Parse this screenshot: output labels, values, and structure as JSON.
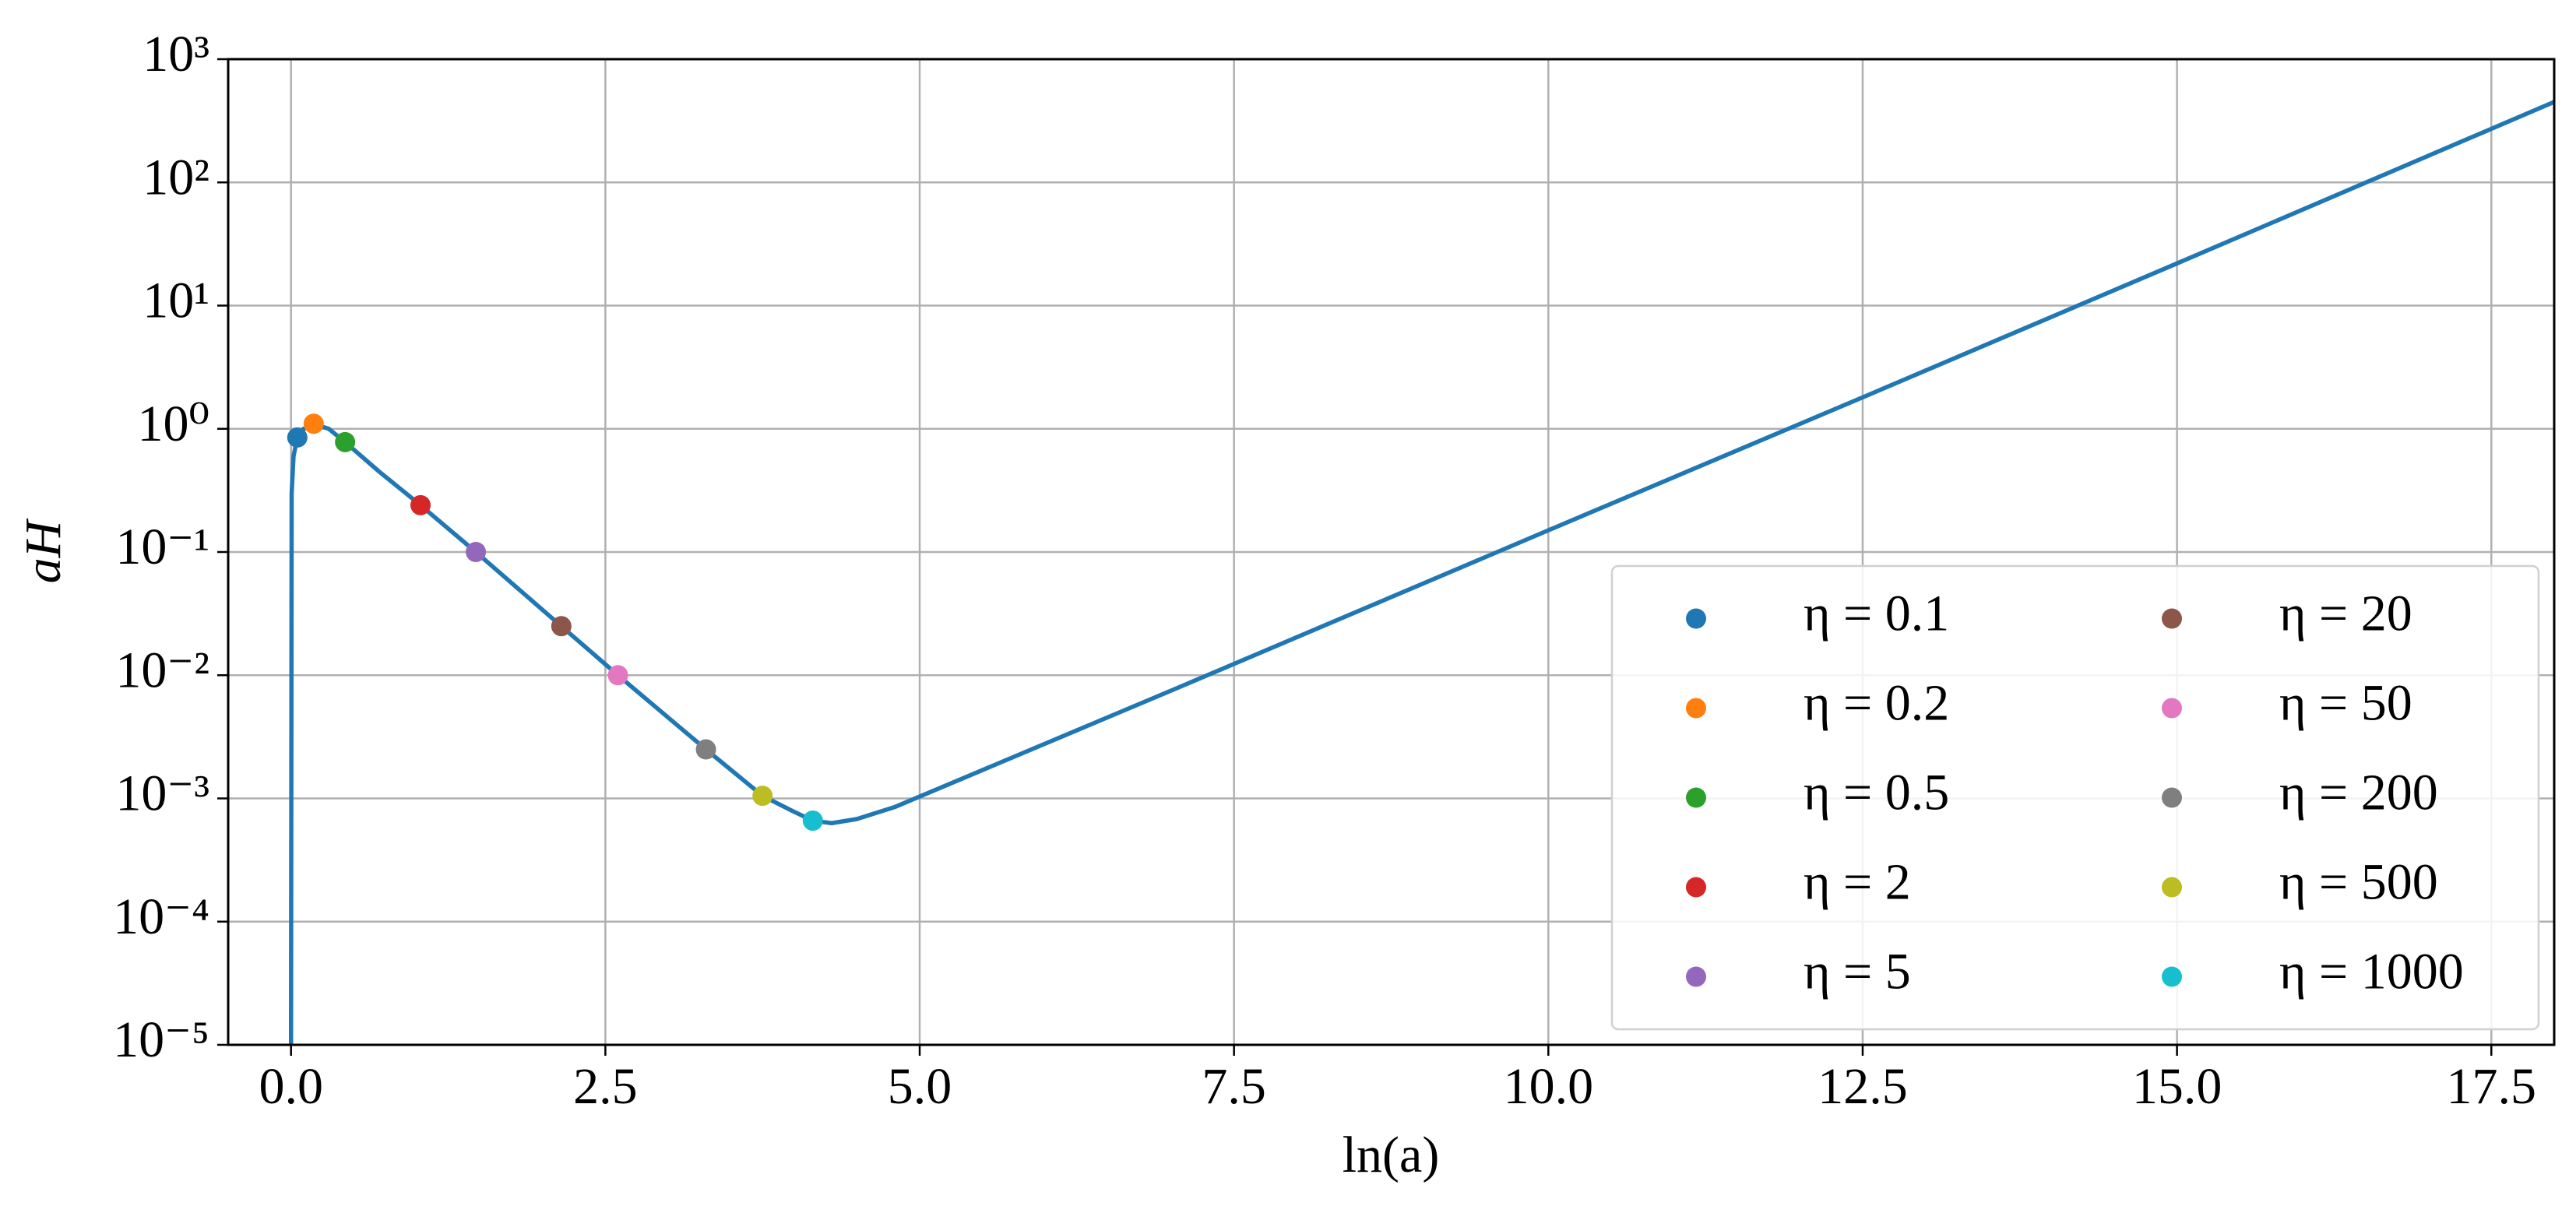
{
  "chart_data": {
    "type": "line",
    "xlabel": "ln(a)",
    "ylabel": "aH",
    "xlim": [
      -0.5,
      18
    ],
    "ylim": [
      1e-05,
      1000
    ],
    "yscale": "log",
    "grid": true,
    "xticks": [
      {
        "value": 0,
        "label": "0.0"
      },
      2.5,
      {
        "value": 5,
        "label": "5.0"
      },
      7.5,
      {
        "value": 10,
        "label": "10.0"
      },
      12.5,
      {
        "value": 15,
        "label": "15.0"
      },
      17.5
    ],
    "yticks": [
      {
        "value": 1e-05,
        "label": "10⁻⁵"
      },
      {
        "value": 0.0001,
        "label": "10⁻⁴"
      },
      {
        "value": 0.001,
        "label": "10⁻³"
      },
      {
        "value": 0.01,
        "label": "10⁻²"
      },
      {
        "value": 0.1,
        "label": "10⁻¹"
      },
      {
        "value": 1,
        "label": "10⁰"
      },
      {
        "value": 10,
        "label": "10¹"
      },
      {
        "value": 100,
        "label": "10²"
      },
      {
        "value": 1000,
        "label": "10³"
      }
    ],
    "legend": "lower right",
    "legend_columns": 2,
    "series": [
      {
        "style": "line",
        "color": "#1f77b4",
        "x": [
          0,
          0.005,
          0.02,
          0.05,
          0.1,
          0.2,
          0.3,
          0.43,
          0.7,
          1.03,
          1.47,
          2.15,
          2.6,
          3.3,
          3.75,
          4.0,
          4.15,
          4.3,
          4.5,
          4.8,
          5.5,
          7,
          10,
          12.5,
          15,
          18
        ],
        "values": [
          1e-05,
          0.3,
          0.6,
          0.85,
          1.0,
          1.08,
          1.0,
          0.78,
          0.45,
          0.24,
          0.1,
          0.025,
          0.01,
          0.0025,
          0.00105,
          0.00078,
          0.00066,
          0.00063,
          0.00068,
          0.00085,
          0.0017,
          0.0075,
          0.15,
          1.8,
          22,
          450
        ]
      },
      {
        "style": "marker",
        "name": "η = 0.1",
        "color": "#1f77b4",
        "x": [
          0.05
        ],
        "values": [
          0.85
        ]
      },
      {
        "style": "marker",
        "name": "η = 0.2",
        "color": "#ff7f0e",
        "x": [
          0.18
        ],
        "values": [
          1.1
        ]
      },
      {
        "style": "marker",
        "name": "η = 0.5",
        "color": "#2ca02c",
        "x": [
          0.43
        ],
        "values": [
          0.78
        ]
      },
      {
        "style": "marker",
        "name": "η = 2",
        "color": "#d62728",
        "x": [
          1.03
        ],
        "values": [
          0.24
        ]
      },
      {
        "style": "marker",
        "name": "η = 5",
        "color": "#9467bd",
        "x": [
          1.47
        ],
        "values": [
          0.1
        ]
      },
      {
        "style": "marker",
        "name": "η = 20",
        "color": "#8c564b",
        "x": [
          2.15
        ],
        "values": [
          0.025
        ]
      },
      {
        "style": "marker",
        "name": "η = 50",
        "color": "#e377c2",
        "x": [
          2.6
        ],
        "values": [
          0.01
        ]
      },
      {
        "style": "marker",
        "name": "η = 200",
        "color": "#7f7f7f",
        "x": [
          3.3
        ],
        "values": [
          0.0025
        ]
      },
      {
        "style": "marker",
        "name": "η = 500",
        "color": "#bcbd22",
        "x": [
          3.75
        ],
        "values": [
          0.00105
        ]
      },
      {
        "style": "marker",
        "name": "η = 1000",
        "color": "#17becf",
        "x": [
          4.15
        ],
        "values": [
          0.00066
        ]
      }
    ]
  }
}
